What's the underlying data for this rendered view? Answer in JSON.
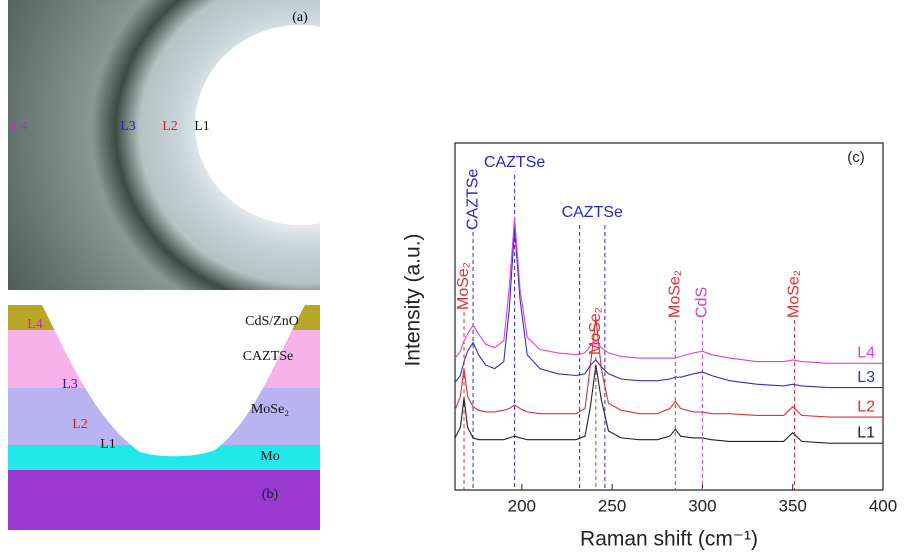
{
  "panel_a": {
    "label": "(a)",
    "regions": [
      "L4",
      "L3",
      "L2",
      "L1"
    ]
  },
  "panel_b": {
    "label": "(b)",
    "layers": [
      "CdS/ZnO",
      "CAZTSe",
      "MoSe₂",
      "Mo"
    ],
    "regions": [
      "L4",
      "L3",
      "L2",
      "L1"
    ]
  },
  "chart_data": {
    "type": "line",
    "panel_label": "(c)",
    "x_label": "Raman shift (cm⁻¹)",
    "y_label": "Intensity (a.u.)",
    "xlim": [
      163,
      400
    ],
    "xticks": [
      200,
      250,
      300,
      350,
      400
    ],
    "ylim": [
      0,
      10
    ],
    "x": [
      163,
      166,
      168,
      170,
      173,
      176,
      180,
      185,
      190,
      193,
      196,
      199,
      203,
      210,
      220,
      230,
      235,
      238,
      241,
      244,
      248,
      255,
      265,
      275,
      282,
      285,
      288,
      295,
      300,
      305,
      315,
      330,
      345,
      350,
      355,
      370,
      385,
      400
    ],
    "series": [
      {
        "name": "L1",
        "color": "#222222",
        "values": [
          1.5,
          1.8,
          2.65,
          1.8,
          1.5,
          1.45,
          1.45,
          1.45,
          1.45,
          1.5,
          1.55,
          1.5,
          1.45,
          1.45,
          1.45,
          1.45,
          1.55,
          2.4,
          3.6,
          2.6,
          1.7,
          1.5,
          1.45,
          1.45,
          1.55,
          1.75,
          1.55,
          1.5,
          1.5,
          1.45,
          1.4,
          1.4,
          1.4,
          1.65,
          1.4,
          1.35,
          1.35,
          1.35
        ]
      },
      {
        "name": "L2",
        "color": "#e03030",
        "values": [
          2.3,
          2.7,
          3.5,
          2.7,
          2.4,
          2.3,
          2.25,
          2.25,
          2.3,
          2.35,
          2.45,
          2.35,
          2.25,
          2.2,
          2.2,
          2.2,
          2.35,
          3.6,
          4.95,
          3.5,
          2.5,
          2.3,
          2.2,
          2.2,
          2.35,
          2.55,
          2.35,
          2.25,
          2.25,
          2.2,
          2.2,
          2.15,
          2.15,
          2.4,
          2.15,
          2.1,
          2.1,
          2.1
        ]
      },
      {
        "name": "L3",
        "color": "#3030c0",
        "values": [
          3.1,
          3.3,
          3.7,
          4.0,
          4.25,
          3.9,
          3.6,
          3.5,
          3.7,
          5.2,
          7.55,
          5.5,
          3.9,
          3.5,
          3.35,
          3.3,
          3.35,
          3.6,
          3.75,
          3.55,
          3.35,
          3.2,
          3.15,
          3.15,
          3.2,
          3.25,
          3.25,
          3.35,
          3.4,
          3.3,
          3.15,
          3.05,
          3.0,
          3.05,
          3.0,
          2.95,
          2.95,
          2.95
        ]
      },
      {
        "name": "L4",
        "color": "#e040e0",
        "values": [
          3.8,
          4.0,
          4.3,
          4.5,
          4.75,
          4.5,
          4.2,
          4.1,
          4.3,
          5.8,
          7.85,
          5.8,
          4.4,
          4.05,
          3.95,
          3.9,
          3.95,
          4.15,
          4.3,
          4.1,
          3.95,
          3.85,
          3.8,
          3.8,
          3.8,
          3.8,
          3.85,
          3.95,
          4.0,
          3.9,
          3.8,
          3.7,
          3.7,
          3.75,
          3.7,
          3.65,
          3.65,
          3.65
        ]
      }
    ],
    "annotations": [
      {
        "x": [
          168
        ],
        "label": "MoSe₂",
        "color": "#e03030",
        "orientation": "vertical"
      },
      {
        "x": [
          173
        ],
        "label": "CAZTSe",
        "color": "#2828c8",
        "orientation": "vertical"
      },
      {
        "x": [
          196
        ],
        "label": "CAZTSe",
        "color": "#2828c8",
        "orientation": "horizontal"
      },
      {
        "x": [
          232,
          246
        ],
        "label": "CAZTSe",
        "color": "#2828c8",
        "orientation": "horizontal"
      },
      {
        "x": [
          241
        ],
        "label": "MoSe₂",
        "color": "#e03030",
        "orientation": "vertical"
      },
      {
        "x": [
          285
        ],
        "label": "MoSe₂",
        "color": "#e03030",
        "orientation": "vertical"
      },
      {
        "x": [
          300
        ],
        "label": "CdS",
        "color": "#d040d0",
        "orientation": "vertical"
      },
      {
        "x": [
          351
        ],
        "label": "MoSe₂",
        "color": "#e03030",
        "orientation": "vertical"
      }
    ]
  }
}
